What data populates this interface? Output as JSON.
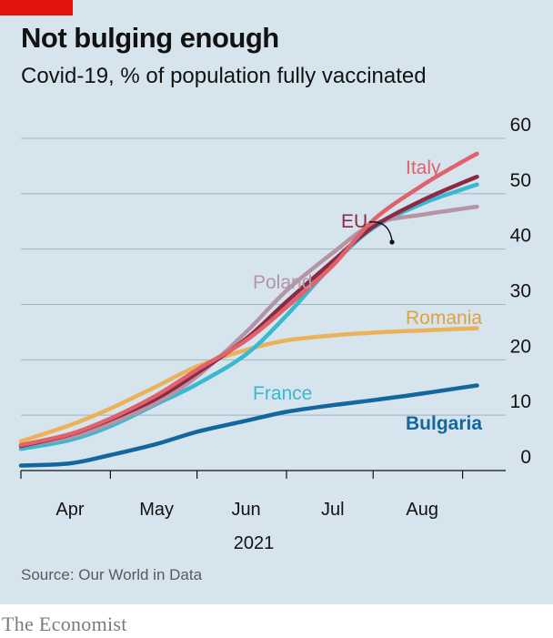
{
  "header": {
    "title": "Not bulging enough",
    "subtitle": "Covid-19, % of population fully vaccinated"
  },
  "footer": {
    "source": "Source: Our World in Data",
    "brand": "The Economist"
  },
  "colors": {
    "background": "#d6e4ee",
    "brand_red": "#e3120b",
    "Italy": "#e0626a",
    "EU": "#8c2a46",
    "France": "#39b9d0",
    "Poland": "#b594a6",
    "Romania": "#ecb25a",
    "Bulgaria": "#13679e"
  },
  "chart_data": {
    "type": "line",
    "title": "Not bulging enough",
    "subtitle": "Covid-19, % of population fully vaccinated",
    "xlabel": "2021",
    "ylabel": "",
    "x_ticks": [
      "Apr",
      "May",
      "Jun",
      "Jul",
      "Aug"
    ],
    "y_ticks": [
      "0",
      "10",
      "20",
      "30",
      "40",
      "50",
      "60"
    ],
    "ylim": [
      0,
      60
    ],
    "xlim": [
      "2021-03-15",
      "2021-08-23"
    ],
    "grid": "horizontal",
    "y_axis_side": "right",
    "legend": "inline labels",
    "series": [
      {
        "name": "Romania",
        "x": [
          "2021-03-15",
          "2021-04-01",
          "2021-04-15",
          "2021-05-01",
          "2021-05-15",
          "2021-06-01",
          "2021-06-15",
          "2021-07-01",
          "2021-07-15",
          "2021-08-01",
          "2021-08-15"
        ],
        "values": [
          5.3,
          8.2,
          11.2,
          15.2,
          18.8,
          21.8,
          23.5,
          24.4,
          24.9,
          25.3,
          25.6
        ]
      },
      {
        "name": "Bulgaria",
        "x": [
          "2021-03-15",
          "2021-04-01",
          "2021-04-15",
          "2021-05-01",
          "2021-05-15",
          "2021-06-01",
          "2021-06-15",
          "2021-07-01",
          "2021-07-15",
          "2021-08-01",
          "2021-08-15"
        ],
        "values": [
          0.9,
          1.3,
          2.8,
          4.8,
          7.0,
          9.0,
          10.6,
          11.8,
          12.7,
          13.9,
          15.0
        ]
      },
      {
        "name": "France",
        "x": [
          "2021-03-15",
          "2021-04-01",
          "2021-04-15",
          "2021-05-01",
          "2021-05-15",
          "2021-06-01",
          "2021-06-15",
          "2021-07-01",
          "2021-07-15",
          "2021-08-01",
          "2021-08-15"
        ],
        "values": [
          3.9,
          5.5,
          8.0,
          12.0,
          15.6,
          21.0,
          28.0,
          37.2,
          43.8,
          48.2,
          50.8
        ]
      },
      {
        "name": "Poland",
        "x": [
          "2021-03-15",
          "2021-04-01",
          "2021-04-15",
          "2021-05-01",
          "2021-05-15",
          "2021-06-01",
          "2021-06-15",
          "2021-07-01",
          "2021-07-15",
          "2021-08-01",
          "2021-08-15"
        ],
        "values": [
          4.5,
          6.0,
          8.5,
          12.3,
          17.0,
          25.0,
          32.5,
          39.3,
          44.5,
          46.2,
          47.3
        ]
      },
      {
        "name": "EU",
        "x": [
          "2021-03-15",
          "2021-04-01",
          "2021-04-15",
          "2021-05-01",
          "2021-05-15",
          "2021-06-01",
          "2021-06-15",
          "2021-07-01",
          "2021-07-15",
          "2021-08-01",
          "2021-08-15"
        ],
        "values": [
          4.4,
          6.5,
          9.2,
          13.0,
          17.6,
          23.8,
          30.5,
          37.8,
          44.0,
          48.8,
          52.0
        ]
      },
      {
        "name": "Italy",
        "x": [
          "2021-03-15",
          "2021-04-01",
          "2021-04-15",
          "2021-05-01",
          "2021-05-15",
          "2021-06-01",
          "2021-06-15",
          "2021-07-01",
          "2021-07-15",
          "2021-08-01",
          "2021-08-15"
        ],
        "values": [
          4.6,
          6.6,
          9.4,
          13.6,
          18.2,
          23.5,
          29.5,
          37.0,
          45.2,
          51.5,
          55.8
        ]
      }
    ],
    "annotations": [
      "Italy",
      "EU",
      "Poland",
      "Romania",
      "France",
      "Bulgaria"
    ]
  }
}
